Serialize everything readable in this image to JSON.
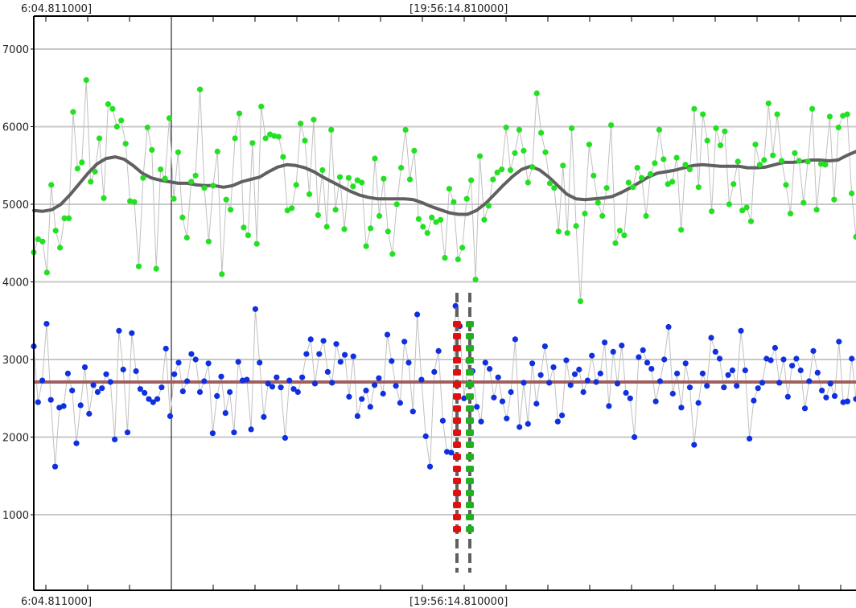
{
  "top_time_labels": [
    "6:04.811000]",
    "[19:56:14.810000]"
  ],
  "bottom_time_labels": [
    "6:04.811000]",
    "[19:56:14.810000]"
  ],
  "chart_data": {
    "type": "scatter",
    "title": "",
    "xlabel": "",
    "ylabel": "",
    "ylim": [
      200,
      7400
    ],
    "y_ticks": [
      "1000",
      "2000",
      "3000",
      "4000",
      "5000",
      "6000",
      "7000"
    ],
    "grid": true,
    "colors": {
      "upper_points": "#22e022",
      "upper_trend": "#606060",
      "lower_points": "#1030e0",
      "lower_mean_line": "#a06060",
      "connector": "#c0c0c0",
      "marker_red": "#e01010",
      "marker_green": "#20b020",
      "marker_dash": "#606060"
    },
    "series": [
      {
        "values": [
          4380,
          4550,
          4520,
          4120,
          5250,
          4660,
          4440,
          4820,
          4820,
          6190,
          5460,
          5540,
          6600,
          5290,
          5420,
          5850,
          5080,
          6290,
          6230,
          6000,
          6080,
          5780,
          5040,
          5030,
          4200,
          5340,
          5990,
          5700,
          4170,
          5450,
          5330,
          6110,
          5070,
          5670,
          4830,
          4570,
          5290,
          5370,
          6480,
          5210,
          4520,
          5240,
          5680,
          4100,
          5060,
          4930,
          5850,
          6170,
          4700,
          4600,
          5790,
          4490,
          6260,
          5850,
          5900,
          5880,
          5870,
          5610,
          4920,
          4950,
          5250,
          6040,
          5820,
          5130,
          6090,
          4860,
          5440,
          4710,
          5960,
          4930,
          5350,
          4680,
          5340,
          5230,
          5310,
          5280,
          4460,
          4690,
          5590,
          4850,
          5330,
          4650,
          4360,
          5000,
          5470,
          5960,
          5320,
          5690,
          4810,
          4710,
          4630,
          4830,
          4770,
          4800,
          4310,
          5200,
          5030,
          4290,
          4440,
          5070,
          5310,
          4030,
          5620,
          4800,
          4980,
          5320,
          5410,
          5450,
          5990,
          5440,
          5660,
          5960,
          5690,
          5280,
          5480,
          6430,
          5920,
          5670,
          5270,
          5210,
          4650,
          5500,
          4630,
          5980,
          4720,
          3750,
          4880,
          5770,
          5370,
          5020,
          4850,
          5210,
          6020,
          4500,
          4660,
          4600,
          5280,
          5220,
          5470,
          5340,
          4850,
          5390,
          5530,
          5960,
          5580,
          5260,
          5290,
          5600,
          4670,
          5510,
          5450,
          6230,
          5220,
          6160,
          5820,
          4910,
          5980,
          5760,
          5940,
          5000,
          5260,
          5550,
          4920,
          4960,
          4780,
          5770,
          5510,
          5570,
          6300,
          5630,
          6160,
          5560,
          5250,
          4880,
          5660,
          5560,
          5020,
          5550,
          6230,
          4930,
          5520,
          5510,
          6130,
          5060,
          5990,
          6140,
          6160,
          5140,
          4580
        ],
        "trend": [
          4920,
          4910,
          4930,
          5000,
          5120,
          5260,
          5400,
          5520,
          5590,
          5610,
          5580,
          5500,
          5400,
          5340,
          5310,
          5290,
          5270,
          5270,
          5250,
          5240,
          5240,
          5220,
          5240,
          5290,
          5320,
          5350,
          5420,
          5480,
          5510,
          5500,
          5470,
          5420,
          5350,
          5290,
          5230,
          5170,
          5120,
          5090,
          5070,
          5070,
          5070,
          5070,
          5060,
          5020,
          4970,
          4930,
          4890,
          4870,
          4870,
          4920,
          5010,
          5130,
          5250,
          5360,
          5450,
          5490,
          5440,
          5350,
          5240,
          5130,
          5070,
          5060,
          5070,
          5080,
          5100,
          5150,
          5210,
          5280,
          5350,
          5400,
          5420,
          5440,
          5470,
          5500,
          5510,
          5500,
          5490,
          5490,
          5490,
          5470,
          5470,
          5480,
          5510,
          5540,
          5540,
          5550,
          5570,
          5570,
          5560,
          5570,
          5630,
          5680
        ]
      },
      {
        "values": [
          3170,
          2450,
          2730,
          3460,
          2480,
          1620,
          2380,
          2400,
          2820,
          2600,
          1920,
          2410,
          2900,
          2300,
          2670,
          2580,
          2630,
          2810,
          2710,
          1970,
          3370,
          2870,
          2060,
          3340,
          2850,
          2620,
          2570,
          2490,
          2450,
          2490,
          2640,
          3140,
          2270,
          2810,
          2960,
          2590,
          2720,
          3070,
          3000,
          2580,
          2720,
          2950,
          2050,
          2530,
          2780,
          2310,
          2580,
          2060,
          2970,
          2730,
          2740,
          2100,
          3650,
          2960,
          2260,
          2690,
          2650,
          2770,
          2640,
          1990,
          2730,
          2620,
          2580,
          2770,
          3070,
          3260,
          2690,
          3070,
          3240,
          2840,
          2700,
          3200,
          2970,
          3060,
          2520,
          3040,
          2270,
          2490,
          2600,
          2390,
          2670,
          2760,
          2560,
          3320,
          2980,
          2660,
          2440,
          3230,
          2960,
          2330,
          3580,
          2740,
          2010,
          1620,
          2840,
          3110,
          2210,
          1810,
          1800,
          3690,
          3430,
          2500,
          2980,
          2850,
          2390,
          2200,
          2960,
          2880,
          2510,
          2770,
          2460,
          2240,
          2580,
          3260,
          2130,
          2700,
          2170,
          2950,
          2430,
          2800,
          3170,
          2700,
          2900,
          2200,
          2280,
          2990,
          2670,
          2810,
          2870,
          2580,
          2730,
          3050,
          2710,
          2820,
          3220,
          2400,
          3100,
          2690,
          3180,
          2570,
          2500,
          2000,
          3030,
          3120,
          2960,
          2880,
          2460,
          2720,
          3000,
          3420,
          2560,
          2820,
          2380,
          2950,
          2640,
          1900,
          2440,
          2820,
          2660,
          3280,
          3100,
          3010,
          2640,
          2800,
          2860,
          2660,
          3370,
          2860,
          1980,
          2470,
          2630,
          2700,
          3010,
          2990,
          3150,
          2700,
          3000,
          2520,
          2920,
          3010,
          2860,
          2370,
          2720,
          3110,
          2830,
          2600,
          2510,
          2690,
          2530,
          3230,
          2450,
          2460,
          3010,
          2490
        ]
      }
    ],
    "mean_line": 2710
  }
}
